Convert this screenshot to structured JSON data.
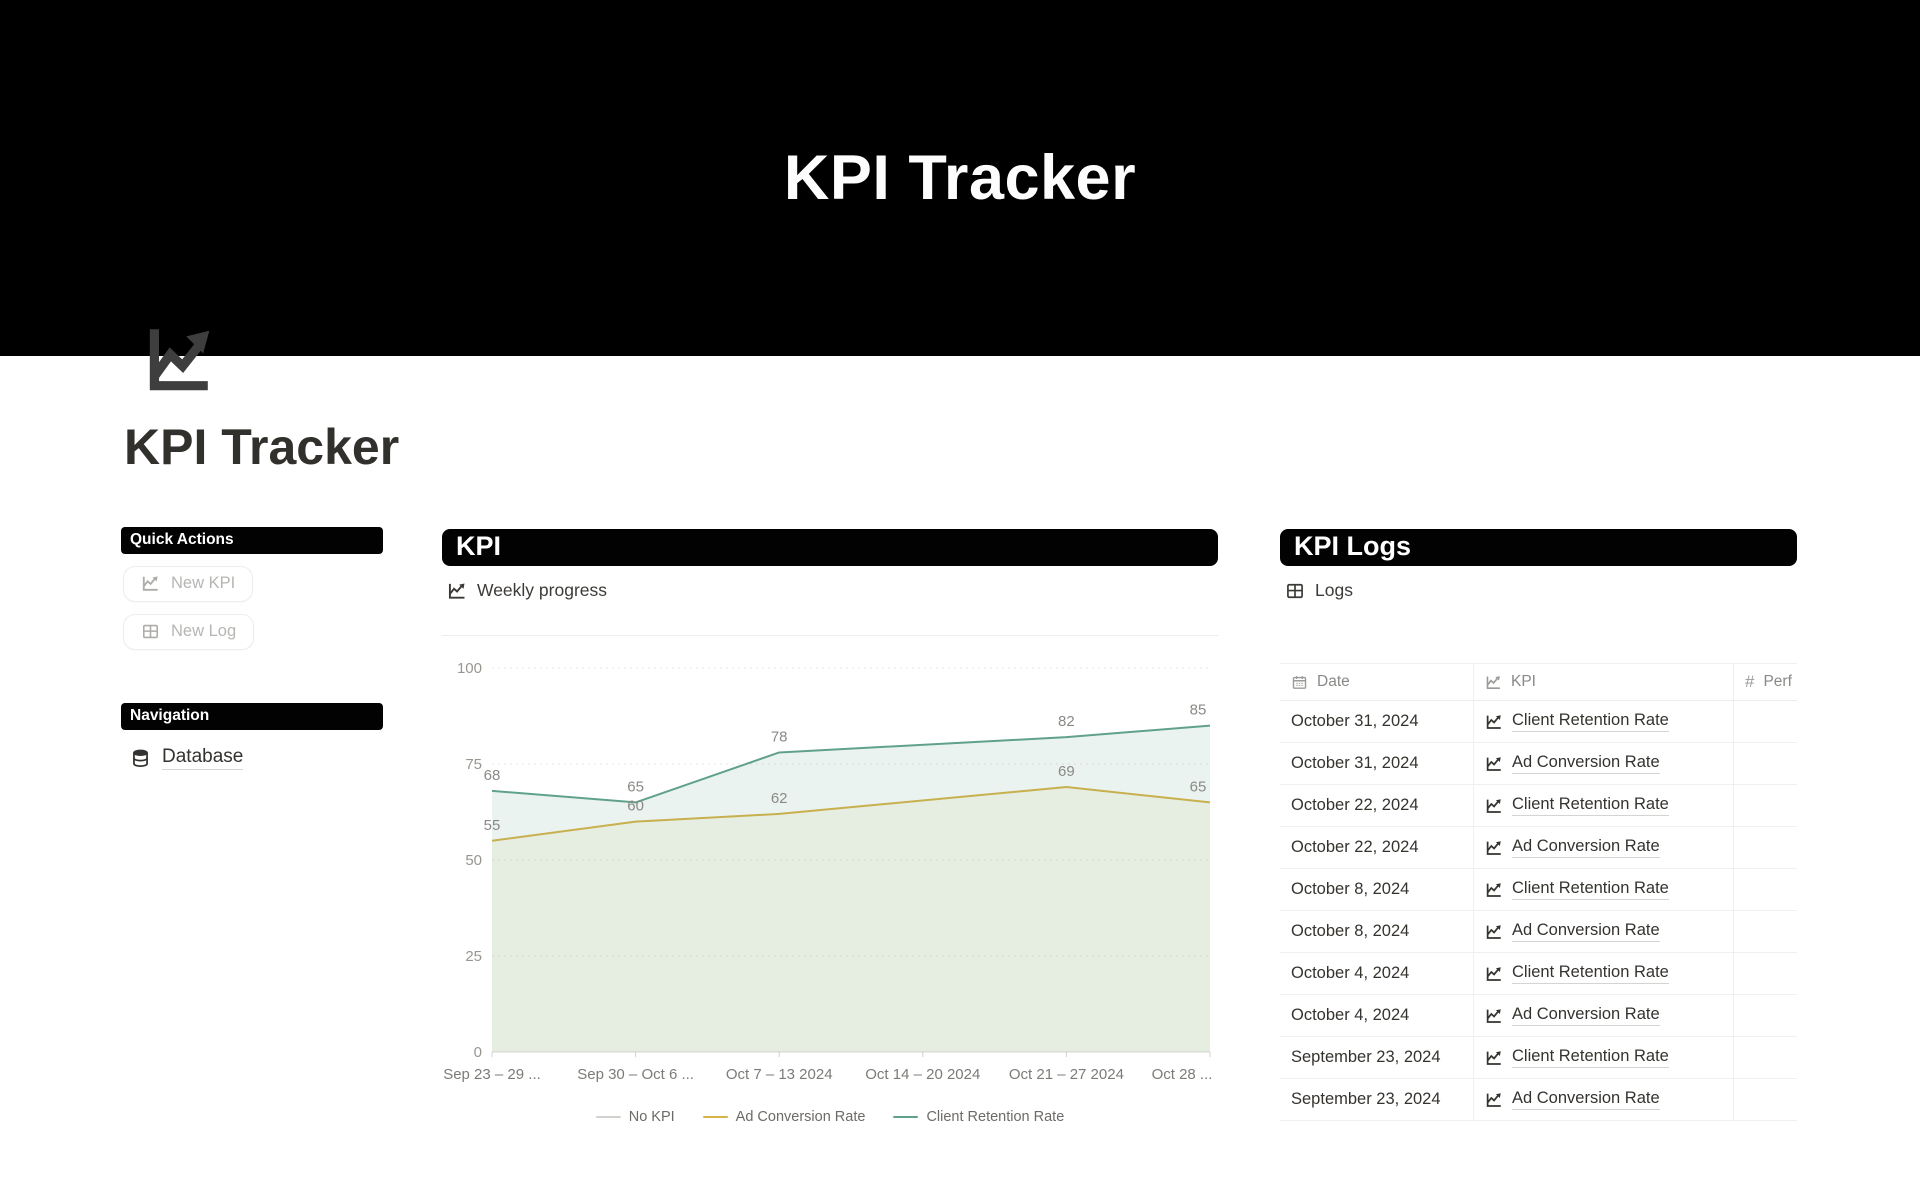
{
  "banner": {
    "title": "KPI Tracker",
    "background": "#000000"
  },
  "page": {
    "title": "KPI Tracker",
    "icon": "chart-increasing-icon"
  },
  "sidebar": {
    "quick_actions": {
      "heading": "Quick Actions",
      "buttons": [
        {
          "label": "New KPI",
          "icon": "chart-line-icon"
        },
        {
          "label": "New Log",
          "icon": "table-icon"
        }
      ]
    },
    "navigation": {
      "heading": "Navigation",
      "items": [
        {
          "label": "Database",
          "icon": "database-icon"
        }
      ]
    }
  },
  "kpi_section": {
    "heading": "KPI",
    "subheading": "Weekly progress",
    "subheading_icon": "chart-line-icon"
  },
  "chart_data": {
    "type": "line",
    "title": "Weekly progress",
    "categories": [
      "Sep 23 – 29 ...",
      "Sep 30 – Oct 6 ...",
      "Oct 7 – 13 2024",
      "Oct 14 – 20 2024",
      "Oct 21 – 27 2024",
      "Oct 28 ..."
    ],
    "series": [
      {
        "name": "No KPI",
        "color": "#d4d2ce",
        "values": [
          null,
          null,
          null,
          null,
          null,
          null
        ],
        "fill_opacity": 0
      },
      {
        "name": "Ad Conversion Rate",
        "color": "#d8b347",
        "values": [
          55,
          60,
          62,
          null,
          69,
          65
        ],
        "fill_opacity": 0.09
      },
      {
        "name": "Client Retention Rate",
        "color": "#60a18d",
        "values": [
          68,
          65,
          78,
          null,
          82,
          85
        ],
        "fill_opacity": 0.13
      }
    ],
    "ylim": [
      0,
      100
    ],
    "yticks": [
      0,
      25,
      50,
      75,
      100
    ],
    "xlabel": "",
    "ylabel": "",
    "grid": "horizontal-dashed",
    "legend_position": "bottom",
    "area_fill": true,
    "point_labels": true
  },
  "logs_section": {
    "heading": "KPI Logs",
    "subheading": "Logs",
    "subheading_icon": "table-icon",
    "table": {
      "columns": [
        {
          "label": "Date",
          "icon": "calendar-icon"
        },
        {
          "label": "KPI",
          "icon": "chart-line-icon"
        },
        {
          "label": "Perf",
          "icon": "number-icon"
        }
      ],
      "rows": [
        {
          "date": "October 31, 2024",
          "kpi": "Client Retention Rate"
        },
        {
          "date": "October 31, 2024",
          "kpi": "Ad Conversion Rate"
        },
        {
          "date": "October 22, 2024",
          "kpi": "Client Retention Rate"
        },
        {
          "date": "October 22, 2024",
          "kpi": "Ad Conversion Rate"
        },
        {
          "date": "October 8, 2024",
          "kpi": "Client Retention Rate"
        },
        {
          "date": "October 8, 2024",
          "kpi": "Ad Conversion Rate"
        },
        {
          "date": "October 4, 2024",
          "kpi": "Client Retention Rate"
        },
        {
          "date": "October 4, 2024",
          "kpi": "Ad Conversion Rate"
        },
        {
          "date": "September 23, 2024",
          "kpi": "Client Retention Rate"
        },
        {
          "date": "September 23, 2024",
          "kpi": "Ad Conversion Rate"
        }
      ]
    }
  }
}
